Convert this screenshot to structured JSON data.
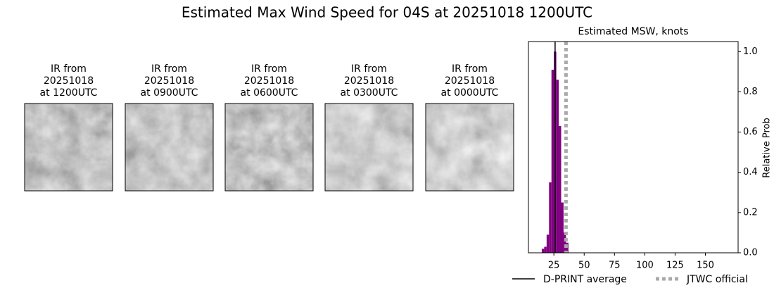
{
  "title": "Estimated Max Wind Speed for 04S at 20251018 1200UTC",
  "panels": [
    {
      "lines": [
        "IR from",
        "20251018",
        "at 1200UTC"
      ]
    },
    {
      "lines": [
        "IR from",
        "20251018",
        "at 0900UTC"
      ]
    },
    {
      "lines": [
        "IR from",
        "20251018",
        "at 0600UTC"
      ]
    },
    {
      "lines": [
        "IR from",
        "20251018",
        "at 0300UTC"
      ]
    },
    {
      "lines": [
        "IR from",
        "20251018",
        "at 0000UTC"
      ]
    }
  ],
  "chart_data": {
    "type": "histogram",
    "title": "Estimated MSW, knots",
    "y_label": "Relative Prob",
    "bins": [
      15,
      17,
      19,
      21,
      23,
      25,
      27,
      29,
      31,
      33,
      35,
      37
    ],
    "values": [
      0.02,
      0.03,
      0.09,
      0.35,
      0.91,
      1.0,
      0.86,
      0.63,
      0.25,
      0.1,
      0.05
    ],
    "color": "#800080",
    "xlim": [
      4,
      177
    ],
    "ylim": [
      0,
      1.05
    ],
    "xticks": [
      25,
      50,
      75,
      100,
      125,
      150
    ],
    "yticks": [
      {
        "value": 0,
        "label": "0.0"
      },
      0.2,
      0.4,
      0.6,
      0.8,
      {
        "value": 1,
        "label": "1.0"
      }
    ],
    "lines": [
      {
        "name": "D-PRINT average",
        "value": 26,
        "color": "#000000",
        "style": "solid"
      },
      {
        "name": "JTWC official",
        "value": 35,
        "color": "#aaaaaa",
        "style": "dotted"
      }
    ]
  }
}
